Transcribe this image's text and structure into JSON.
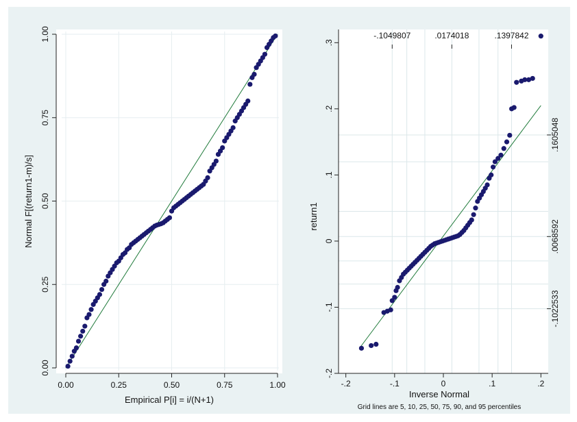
{
  "chart_data": [
    {
      "type": "scatter",
      "subtype": "probability-plot",
      "xlabel": "Empirical P[i] = i/(N+1)",
      "ylabel": "Normal F[(return1-m)/s]",
      "xlim": [
        0,
        1
      ],
      "ylim": [
        0,
        1
      ],
      "xticks": [
        "0.00",
        "0.25",
        "0.50",
        "0.75",
        "1.00"
      ],
      "yticks": [
        "0.00",
        "0.25",
        "0.50",
        "0.75",
        "1.00"
      ],
      "grid": "on",
      "reference_line": {
        "from": [
          0,
          0
        ],
        "to": [
          1,
          1
        ]
      },
      "marker_color": "#1a1a6e",
      "line_color": "#1f7a3a",
      "x": [
        0.01,
        0.02,
        0.03,
        0.04,
        0.05,
        0.06,
        0.07,
        0.08,
        0.09,
        0.1,
        0.11,
        0.12,
        0.13,
        0.14,
        0.15,
        0.16,
        0.17,
        0.18,
        0.19,
        0.2,
        0.21,
        0.22,
        0.23,
        0.24,
        0.25,
        0.26,
        0.27,
        0.28,
        0.29,
        0.3,
        0.31,
        0.32,
        0.33,
        0.34,
        0.35,
        0.36,
        0.37,
        0.38,
        0.39,
        0.4,
        0.41,
        0.42,
        0.43,
        0.44,
        0.45,
        0.46,
        0.47,
        0.48,
        0.49,
        0.5,
        0.51,
        0.52,
        0.53,
        0.54,
        0.55,
        0.56,
        0.57,
        0.58,
        0.59,
        0.6,
        0.61,
        0.62,
        0.63,
        0.64,
        0.65,
        0.66,
        0.67,
        0.68,
        0.69,
        0.7,
        0.71,
        0.72,
        0.73,
        0.74,
        0.75,
        0.76,
        0.77,
        0.78,
        0.79,
        0.8,
        0.81,
        0.82,
        0.83,
        0.84,
        0.85,
        0.86,
        0.87,
        0.88,
        0.89,
        0.9,
        0.91,
        0.92,
        0.93,
        0.94,
        0.95,
        0.96,
        0.97,
        0.98,
        0.99
      ],
      "y": [
        0.005,
        0.02,
        0.035,
        0.05,
        0.06,
        0.08,
        0.095,
        0.11,
        0.125,
        0.15,
        0.16,
        0.175,
        0.19,
        0.2,
        0.21,
        0.22,
        0.235,
        0.25,
        0.26,
        0.275,
        0.285,
        0.295,
        0.305,
        0.315,
        0.32,
        0.33,
        0.34,
        0.345,
        0.355,
        0.36,
        0.37,
        0.375,
        0.38,
        0.385,
        0.39,
        0.395,
        0.4,
        0.405,
        0.41,
        0.415,
        0.42,
        0.425,
        0.428,
        0.43,
        0.432,
        0.435,
        0.44,
        0.445,
        0.45,
        0.47,
        0.48,
        0.485,
        0.49,
        0.495,
        0.5,
        0.505,
        0.51,
        0.515,
        0.52,
        0.525,
        0.53,
        0.535,
        0.54,
        0.545,
        0.55,
        0.56,
        0.57,
        0.59,
        0.6,
        0.61,
        0.62,
        0.64,
        0.65,
        0.66,
        0.68,
        0.69,
        0.7,
        0.71,
        0.72,
        0.74,
        0.75,
        0.76,
        0.77,
        0.78,
        0.79,
        0.8,
        0.85,
        0.87,
        0.88,
        0.9,
        0.91,
        0.92,
        0.93,
        0.94,
        0.96,
        0.97,
        0.98,
        0.99,
        0.995
      ]
    },
    {
      "type": "scatter",
      "subtype": "quantile-normal-plot",
      "xlabel": "Inverse Normal",
      "ylabel": "return1",
      "xlim": [
        -0.215,
        0.215
      ],
      "ylim": [
        -0.2,
        0.32
      ],
      "xticks": [
        "-.2",
        "-.1",
        "0",
        ".1",
        ".2"
      ],
      "yticks": [
        "-.2",
        "-.1",
        "0",
        ".1",
        ".2",
        ".3"
      ],
      "top_ticks": [
        "-.1049807",
        ".0174018",
        ".1397842"
      ],
      "right_ticks": [
        "-.1022533",
        ".0068592",
        ".1605048"
      ],
      "note": "Grid lines are 5, 10, 25, 50, 75, 90, and 95 percentiles",
      "grid_percentiles": [
        5,
        10,
        25,
        50,
        75,
        90,
        95
      ],
      "reference_line": {
        "from": [
          -0.17,
          -0.16
        ],
        "to": [
          0.2,
          0.205
        ]
      },
      "marker_color": "#1a1a6e",
      "line_color": "#1f7a3a",
      "x": [
        -0.168,
        -0.148,
        -0.138,
        -0.122,
        -0.115,
        -0.108,
        -0.105,
        -0.1,
        -0.097,
        -0.094,
        -0.09,
        -0.086,
        -0.082,
        -0.078,
        -0.074,
        -0.07,
        -0.066,
        -0.062,
        -0.058,
        -0.054,
        -0.05,
        -0.046,
        -0.042,
        -0.038,
        -0.034,
        -0.03,
        -0.026,
        -0.022,
        -0.018,
        -0.014,
        -0.01,
        -0.006,
        -0.002,
        0.002,
        0.006,
        0.01,
        0.014,
        0.018,
        0.022,
        0.026,
        0.03,
        0.034,
        0.038,
        0.042,
        0.046,
        0.05,
        0.054,
        0.058,
        0.062,
        0.066,
        0.07,
        0.074,
        0.078,
        0.082,
        0.086,
        0.09,
        0.094,
        0.098,
        0.102,
        0.106,
        0.112,
        0.118,
        0.124,
        0.13,
        0.136,
        0.14,
        0.145,
        0.15,
        0.16,
        0.167,
        0.175,
        0.183,
        0.2
      ],
      "y": [
        -0.162,
        -0.158,
        -0.156,
        -0.108,
        -0.106,
        -0.104,
        -0.09,
        -0.085,
        -0.075,
        -0.07,
        -0.06,
        -0.055,
        -0.05,
        -0.047,
        -0.044,
        -0.041,
        -0.038,
        -0.035,
        -0.032,
        -0.029,
        -0.026,
        -0.023,
        -0.02,
        -0.017,
        -0.014,
        -0.011,
        -0.008,
        -0.006,
        -0.004,
        -0.003,
        -0.002,
        -0.001,
        0.0,
        0.001,
        0.002,
        0.003,
        0.004,
        0.005,
        0.006,
        0.007,
        0.008,
        0.01,
        0.013,
        0.016,
        0.02,
        0.024,
        0.028,
        0.032,
        0.04,
        0.05,
        0.06,
        0.065,
        0.07,
        0.075,
        0.08,
        0.085,
        0.095,
        0.1,
        0.112,
        0.12,
        0.125,
        0.13,
        0.14,
        0.15,
        0.16,
        0.2,
        0.202,
        0.24,
        0.242,
        0.244,
        0.244,
        0.246,
        0.31
      ]
    }
  ]
}
